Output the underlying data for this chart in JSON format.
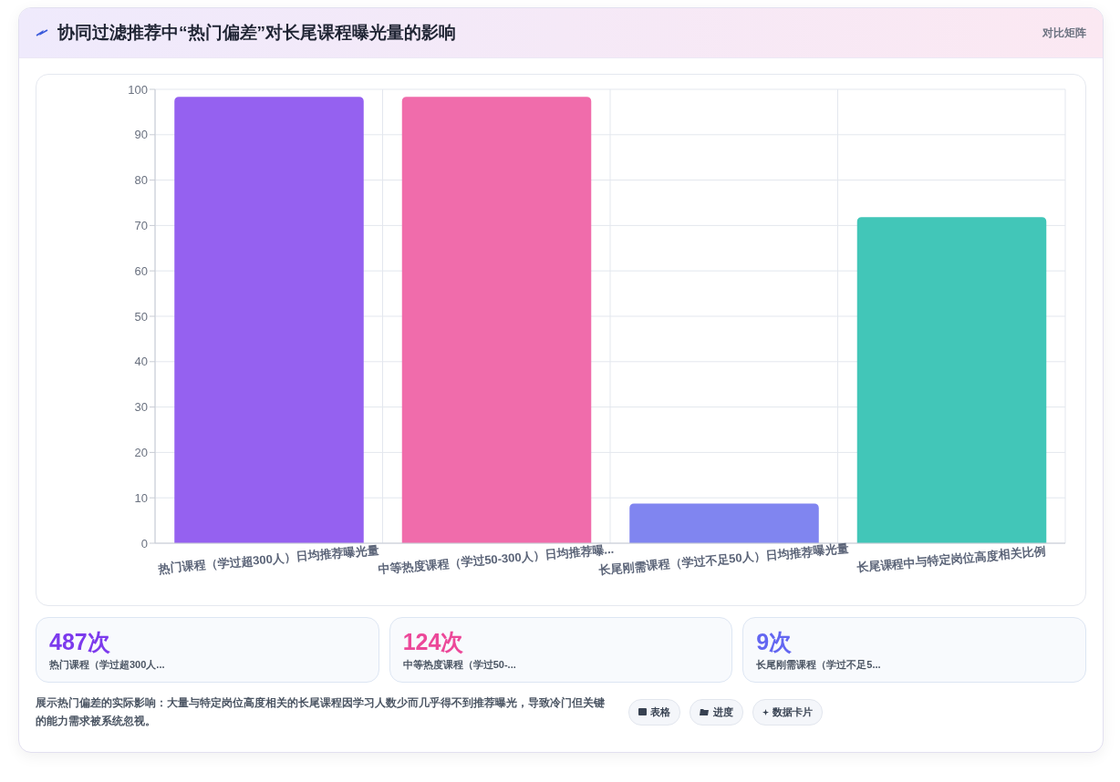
{
  "chart_data": {
    "type": "bar",
    "title": "协同过滤推荐中“热门偏差”对长尾课程曝光量的影响",
    "categories": [
      "热门课程（学过超300人）日均推荐曝光量",
      "中等热度课程（学过50-300人）日均推荐曝...",
      "长尾刚需课程（学过不足50人）日均推荐曝光量",
      "长尾课程中与特定岗位高度相关比例"
    ],
    "values": [
      98.2,
      98.2,
      8.6,
      71.7
    ],
    "colors": [
      "#9561f0",
      "#f06cab",
      "#8085f0",
      "#42c6b8"
    ],
    "ylim": [
      0,
      100
    ],
    "yticks": [
      0,
      10,
      20,
      30,
      40,
      50,
      60,
      70,
      80,
      90,
      100
    ],
    "grid": true,
    "annotations": [
      "对比矩阵",
      "487次",
      "热门课程（学过超300人...",
      "124次",
      "中等热度课程（学过50-...",
      "9次",
      "长尾刚需课程（学过不足5...",
      "展示热门偏差的实际影响：大量与特定岗位高度相关的长尾课程因学习人数少而几乎得不到推荐曝光，导致冷门但关键的能力需求被系统忽视。",
      "表格",
      "进度",
      "数据卡片"
    ]
  }
}
